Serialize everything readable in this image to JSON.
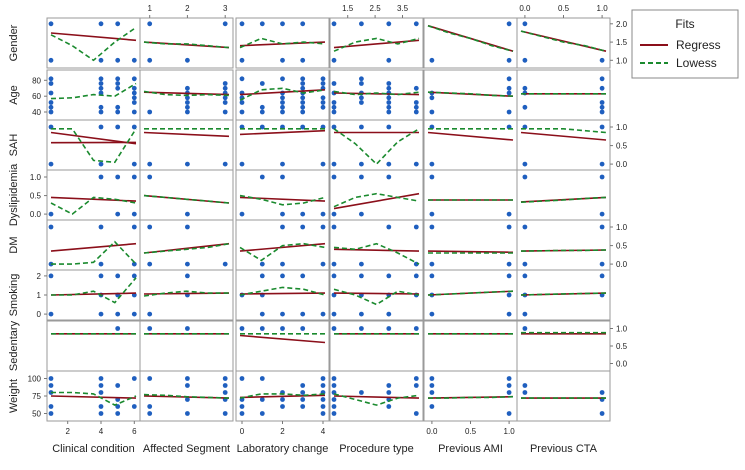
{
  "chart_data": {
    "type": "scatter",
    "title": "",
    "columns": [
      "Clinical condition",
      "Affected Segment",
      "Laboratory change",
      "Procedure type",
      "Previous AMI",
      "Previous CTA"
    ],
    "rows": [
      "Gender",
      "Age",
      "SAH",
      "Dyslipidemia",
      "DM",
      "Smoking",
      "Sedentary",
      "Weight"
    ],
    "legend": {
      "title": "Fits",
      "entries": [
        "Regress",
        "Lowess"
      ],
      "position": "top-right"
    },
    "colors": {
      "points": "#1f5fbf",
      "regress": "#8b0f1a",
      "lowess": "#1a8a2e"
    },
    "x_ticks": {
      "Clinical condition": [
        "2",
        "4",
        "6"
      ],
      "Affected Segment": [
        "1",
        "2",
        "3"
      ],
      "Laboratory change": [
        "0",
        "2",
        "4"
      ],
      "Procedure type": [
        "1.5",
        "2.5",
        "3.5"
      ],
      "Previous AMI": [
        "0.0",
        "0.5",
        "1.0"
      ],
      "Previous CTA": [
        "0.0",
        "0.5",
        "1.0"
      ]
    },
    "y_ticks": {
      "Gender": [
        "1.0",
        "1.5",
        "2.0"
      ],
      "Age": [
        "40",
        "60",
        "80"
      ],
      "SAH": [
        "0.0",
        "0.5",
        "1.0"
      ],
      "Dyslipidemia": [
        "0.0",
        "0.5",
        "1.0"
      ],
      "DM": [
        "0.0",
        "0.5",
        "1.0"
      ],
      "Smoking": [
        "0",
        "1",
        "2"
      ],
      "Sedentary": [
        "0.0",
        "0.5",
        "1.0"
      ],
      "Weight": [
        "50",
        "75",
        "100"
      ]
    },
    "x_values": {
      "Clinical condition": [
        1,
        4,
        5,
        6
      ],
      "Affected Segment": [
        1,
        2,
        3
      ],
      "Laboratory change": [
        0,
        1,
        2,
        3,
        4
      ],
      "Procedure type": [
        1,
        2,
        3,
        4
      ],
      "Previous AMI": [
        0,
        1
      ],
      "Previous CTA": [
        0,
        1
      ]
    },
    "y_values": {
      "Gender": [
        1,
        2
      ],
      "Age": [
        40,
        46,
        52,
        58,
        64,
        70,
        76,
        82
      ],
      "SAH": [
        0,
        1
      ],
      "Dyslipidemia": [
        0,
        1
      ],
      "DM": [
        0,
        1
      ],
      "Smoking": [
        0,
        1,
        2
      ],
      "Sedentary": [
        1
      ],
      "Weight": [
        50,
        60,
        70,
        80,
        90,
        100
      ]
    },
    "regress": {
      "Clinical condition": [
        [
          1.75,
          1.55
        ],
        [
          1.25,
          1.65
        ],
        [
          0.85,
          0.55
        ],
        [
          0.45,
          0.35
        ],
        [
          0.35,
          0.55
        ],
        [
          1.0,
          1.1
        ],
        [
          0.85,
          0.85
        ],
        [
          75,
          72
        ]
      ],
      "Affected Segment": [
        [
          1.5,
          1.35
        ],
        [
          65,
          62
        ],
        [
          0.85,
          0.75
        ],
        [
          0.5,
          0.3
        ],
        [
          0.3,
          0.55
        ],
        [
          1.05,
          1.1
        ],
        [
          0.85,
          0.85
        ],
        [
          75,
          72
        ]
      ],
      "Laboratory change": [
        [
          1.4,
          1.5
        ],
        [
          62,
          68
        ],
        [
          0.8,
          0.9
        ],
        [
          0.45,
          0.35
        ],
        [
          0.35,
          0.55
        ],
        [
          1.05,
          1.1
        ],
        [
          0.8,
          0.6
        ],
        [
          73,
          76
        ]
      ],
      "Procedure type": [
        [
          1.35,
          1.55
        ],
        [
          64,
          62
        ],
        [
          0.85,
          0.85
        ],
        [
          0.15,
          0.55
        ],
        [
          0.4,
          0.35
        ],
        [
          1.1,
          1.05
        ],
        [
          0.85,
          0.85
        ],
        [
          75,
          72
        ]
      ],
      "Previous AMI": [
        [
          1.95,
          1.25
        ],
        [
          65,
          60
        ],
        [
          0.85,
          0.65
        ],
        [
          0.38,
          0.38
        ],
        [
          0.35,
          0.32
        ],
        [
          1.0,
          1.2
        ],
        [
          0.85,
          0.85
        ],
        [
          72,
          74
        ]
      ],
      "Previous CTA": [
        [
          1.8,
          1.25
        ],
        [
          63,
          63
        ],
        [
          0.85,
          0.65
        ],
        [
          0.33,
          0.45
        ],
        [
          0.35,
          0.38
        ],
        [
          1.0,
          1.1
        ],
        [
          0.85,
          0.85
        ],
        [
          72,
          72
        ]
      ]
    }
  }
}
